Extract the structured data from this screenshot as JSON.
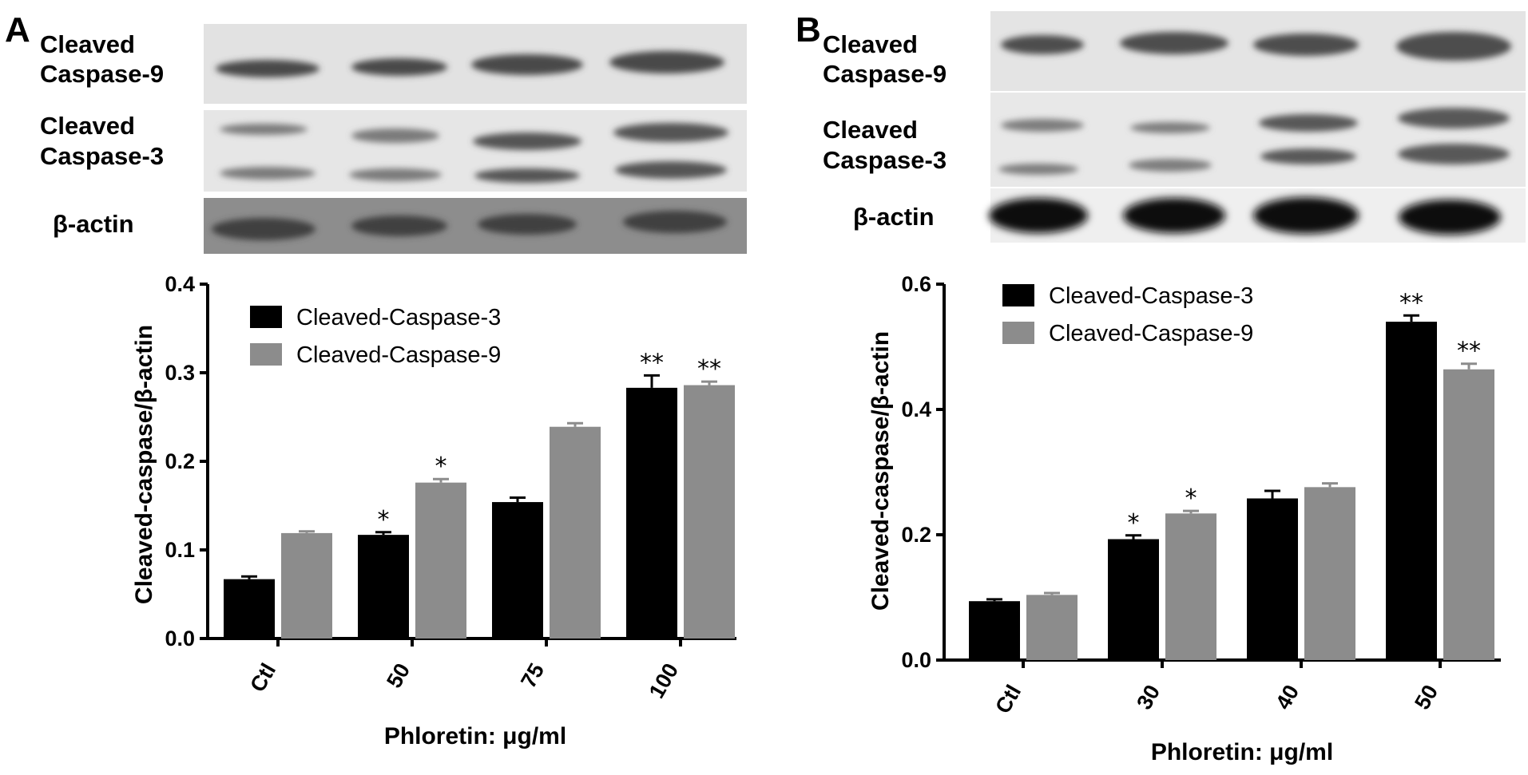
{
  "panels": [
    {
      "letter": "A",
      "blot_labels": {
        "caspase9": [
          "Cleaved",
          "Caspase-9"
        ],
        "caspase3": [
          "Cleaved",
          "Caspase-3"
        ],
        "actin": "β-actin"
      }
    },
    {
      "letter": "B",
      "blot_labels": {
        "caspase9": [
          "Cleaved",
          "Caspase-9"
        ],
        "caspase3": [
          "Cleaved",
          "Caspase-3"
        ],
        "actin": "β-actin"
      }
    }
  ],
  "chart_data": [
    {
      "type": "bar",
      "title": "",
      "categories": [
        "Ctl",
        "50",
        "75",
        "100"
      ],
      "series": [
        {
          "name": "Cleaved-Caspase-3",
          "color": "#000000",
          "values": [
            0.067,
            0.117,
            0.154,
            0.283
          ],
          "errors": [
            0.003,
            0.003,
            0.005,
            0.014
          ],
          "significance": [
            "",
            "*",
            "",
            "**"
          ]
        },
        {
          "name": "Cleaved-Caspase-9",
          "color": "#8c8c8c",
          "values": [
            0.119,
            0.176,
            0.239,
            0.286
          ],
          "errors": [
            0.002,
            0.004,
            0.004,
            0.004
          ],
          "significance": [
            "",
            "*",
            "",
            "**"
          ]
        }
      ],
      "xlabel": "Phloretin: μg/ml",
      "ylabel": "Cleaved-caspase/β-actin",
      "ylim": [
        0,
        0.4
      ],
      "yticks": [
        "0.0",
        "0.1",
        "0.2",
        "0.3",
        "0.4"
      ],
      "legend": "top-left",
      "grid": false
    },
    {
      "type": "bar",
      "title": "",
      "categories": [
        "Ctl",
        "30",
        "40",
        "50"
      ],
      "series": [
        {
          "name": "Cleaved-Caspase-3",
          "color": "#000000",
          "values": [
            0.094,
            0.193,
            0.258,
            0.54
          ],
          "errors": [
            0.003,
            0.006,
            0.012,
            0.01
          ],
          "significance": [
            "",
            "*",
            "",
            "**"
          ]
        },
        {
          "name": "Cleaved-Caspase-9",
          "color": "#8c8c8c",
          "values": [
            0.104,
            0.234,
            0.276,
            0.464
          ],
          "errors": [
            0.003,
            0.004,
            0.006,
            0.009
          ],
          "significance": [
            "",
            "*",
            "",
            "**"
          ]
        }
      ],
      "xlabel": "Phloretin: μg/ml",
      "ylabel": "Cleaved-caspase/β-actin",
      "ylim": [
        0,
        0.6
      ],
      "yticks": [
        "0.0",
        "0.2",
        "0.4",
        "0.6"
      ],
      "legend": "top-left",
      "grid": false
    }
  ]
}
